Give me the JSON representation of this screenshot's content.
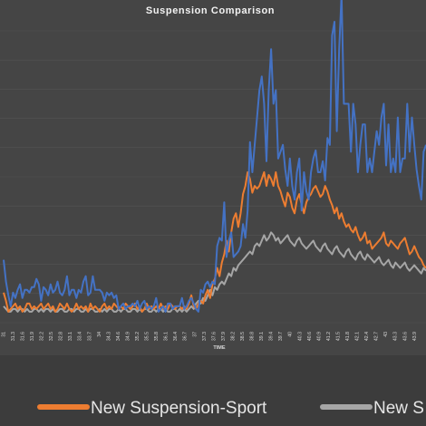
{
  "chart_data": {
    "type": "line",
    "title": "Suspension Comparison",
    "xlabel": "TIME",
    "ylabel": "",
    "grid": true,
    "legend_position": "bottom",
    "x_tick_labels": [
      "31",
      "31.3",
      "31.6",
      "31.9",
      "32.2",
      "32.5",
      "32.8",
      "33.1",
      "33.4",
      "33.7",
      "34",
      "34.3",
      "34.6",
      "34.9",
      "35.2",
      "35.5",
      "35.8",
      "36.1",
      "36.4",
      "36.7",
      "37",
      "37.3",
      "37.6",
      "37.9",
      "38.2",
      "38.5",
      "38.8",
      "39.1",
      "39.4",
      "39.7",
      "40",
      "40.3",
      "40.6",
      "40.9",
      "41.2",
      "41.5",
      "41.8",
      "42.1",
      "42.4",
      "42.7",
      "43",
      "43.3",
      "43.6",
      "43.9"
    ],
    "x_start": 30.95,
    "x_step": 0.05,
    "series": [
      {
        "name": "",
        "color": "#4472c4",
        "values": [
          46,
          30,
          20,
          12,
          22,
          18,
          24,
          28,
          18,
          24,
          24,
          22,
          26,
          26,
          32,
          28,
          16,
          26,
          24,
          20,
          28,
          22,
          24,
          30,
          22,
          20,
          24,
          34,
          20,
          24,
          24,
          18,
          24,
          22,
          30,
          34,
          20,
          22,
          34,
          24,
          24,
          24,
          22,
          16,
          22,
          20,
          22,
          18,
          20,
          10,
          12,
          14,
          10,
          12,
          12,
          14,
          12,
          16,
          10,
          14,
          16,
          10,
          12,
          10,
          12,
          18,
          8,
          10,
          12,
          8,
          14,
          14,
          10,
          12,
          12,
          12,
          18,
          10,
          12,
          16,
          18,
          14,
          10,
          8,
          24,
          22,
          28,
          30,
          26,
          30,
          28,
          56,
          62,
          60,
          88,
          48,
          60,
          66,
          48,
          50,
          52,
          56,
          72,
          62,
          82,
          132,
          110,
          130,
          150,
          170,
          180,
          160,
          118,
          170,
          200,
          160,
          170,
          120,
          125,
          130,
          112,
          100,
          120,
          100,
          90,
          110,
          120,
          82,
          110,
          96,
          90,
          110,
          120,
          126,
          110,
          110,
          118,
          104,
          135,
          130,
          210,
          220,
          140,
          200,
          240,
          160,
          160,
          160,
          125,
          160,
          145,
          110,
          130,
          145,
          145,
          110,
          120,
          110,
          125,
          140,
          130,
          150,
          160,
          115,
          145,
          110,
          120,
          110,
          150,
          110,
          120,
          120,
          160,
          125,
          150,
          130,
          112,
          100,
          90,
          125,
          130
        ]
      },
      {
        "name": "New Suspension-Sport",
        "color": "#ed7d31",
        "values": [
          22,
          16,
          8,
          10,
          12,
          14,
          10,
          12,
          8,
          10,
          14,
          14,
          10,
          12,
          10,
          12,
          14,
          10,
          12,
          14,
          10,
          12,
          8,
          10,
          14,
          12,
          10,
          14,
          10,
          8,
          10,
          14,
          10,
          12,
          10,
          12,
          8,
          14,
          10,
          12,
          10,
          8,
          12,
          14,
          10,
          12,
          10,
          14,
          12,
          10,
          12,
          10,
          14,
          12,
          10,
          12,
          14,
          10,
          12,
          8,
          10,
          14,
          10,
          12,
          10,
          12,
          10,
          14,
          10,
          12,
          10,
          14,
          12,
          10,
          12,
          12,
          10,
          12,
          10,
          14,
          20,
          12,
          10,
          14,
          16,
          14,
          20,
          24,
          18,
          28,
          32,
          40,
          34,
          44,
          50,
          60,
          52,
          66,
          76,
          80,
          70,
          80,
          94,
          100,
          110,
          105,
          95,
          100,
          98,
          100,
          105,
          110,
          100,
          108,
          105,
          100,
          110,
          100,
          96,
          90,
          85,
          95,
          92,
          84,
          80,
          90,
          94,
          86,
          80,
          88,
          92,
          94,
          98,
          100,
          96,
          92,
          94,
          100,
          96,
          90,
          86,
          80,
          84,
          76,
          80,
          74,
          70,
          72,
          68,
          66,
          70,
          64,
          60,
          62,
          66,
          58,
          60,
          54,
          56,
          58,
          60,
          62,
          66,
          58,
          56,
          60,
          58,
          56,
          54,
          58,
          60,
          62,
          56,
          50,
          52,
          56,
          52,
          48,
          46,
          42,
          40
        ]
      },
      {
        "name": "New S",
        "color": "#a6a6a6",
        "values": [
          12,
          10,
          8,
          8,
          10,
          10,
          8,
          10,
          10,
          8,
          10,
          8,
          8,
          10,
          10,
          8,
          10,
          8,
          10,
          10,
          8,
          10,
          8,
          8,
          10,
          10,
          8,
          8,
          10,
          10,
          8,
          10,
          10,
          8,
          8,
          10,
          8,
          10,
          10,
          8,
          8,
          10,
          8,
          10,
          8,
          10,
          10,
          8,
          8,
          10,
          8,
          10,
          10,
          8,
          8,
          10,
          10,
          8,
          10,
          8,
          10,
          10,
          8,
          8,
          10,
          8,
          10,
          10,
          8,
          10,
          8,
          8,
          10,
          10,
          8,
          10,
          8,
          10,
          8,
          10,
          12,
          10,
          14,
          16,
          14,
          18,
          16,
          20,
          24,
          20,
          26,
          24,
          28,
          30,
          28,
          32,
          36,
          34,
          40,
          38,
          42,
          44,
          46,
          48,
          50,
          52,
          50,
          56,
          58,
          56,
          60,
          64,
          60,
          62,
          66,
          64,
          60,
          62,
          58,
          60,
          62,
          64,
          60,
          58,
          56,
          60,
          62,
          58,
          56,
          54,
          56,
          58,
          60,
          56,
          54,
          52,
          56,
          58,
          54,
          52,
          50,
          54,
          56,
          52,
          50,
          48,
          52,
          54,
          50,
          48,
          46,
          50,
          52,
          48,
          46,
          50,
          48,
          46,
          44,
          46,
          48,
          44,
          42,
          44,
          46,
          42,
          40,
          44,
          42,
          40,
          42,
          44,
          40,
          38,
          40,
          42,
          40,
          38,
          36,
          40,
          38
        ]
      }
    ],
    "legend": [
      {
        "label": "New Suspension-Sport",
        "color": "#ed7d31"
      },
      {
        "label": "New S",
        "color": "#a6a6a6"
      }
    ]
  }
}
